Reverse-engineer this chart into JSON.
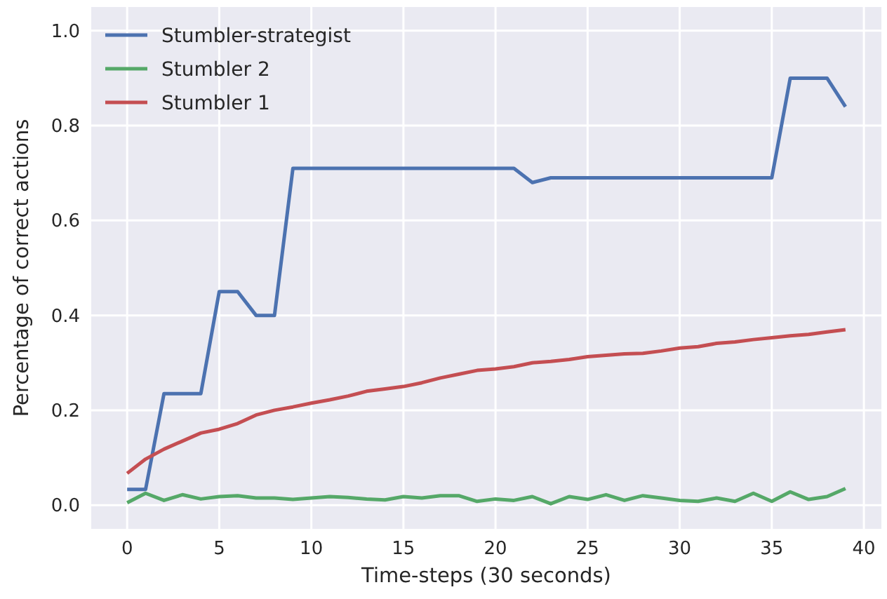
{
  "chart_data": {
    "type": "line",
    "xlabel": "Time-steps (30 seconds)",
    "ylabel": "Percentage of correct actions",
    "x": [
      0,
      1,
      2,
      3,
      4,
      5,
      6,
      7,
      8,
      9,
      10,
      11,
      12,
      13,
      14,
      15,
      16,
      17,
      18,
      19,
      20,
      21,
      22,
      23,
      24,
      25,
      26,
      27,
      28,
      29,
      30,
      31,
      32,
      33,
      34,
      35,
      36,
      37,
      38,
      39
    ],
    "xlim": [
      -1.95,
      40.95
    ],
    "xticks": [
      0,
      5,
      10,
      15,
      20,
      25,
      30,
      35,
      40
    ],
    "ylim": [
      -0.05,
      1.05
    ],
    "yticks": [
      {
        "value": 0,
        "label": "0.0"
      },
      {
        "value": 0.2,
        "label": "0.2"
      },
      {
        "value": 0.4,
        "label": "0.4"
      },
      {
        "value": 0.6,
        "label": "0.6"
      },
      {
        "value": 0.8,
        "label": "0.8"
      },
      {
        "value": 1,
        "label": "1.0"
      }
    ],
    "grid": true,
    "legend": "top left",
    "line_style": "solid",
    "marker": "none",
    "series": [
      {
        "name": "Stumbler-strategist",
        "color": "#4c72b0",
        "values": [
          0.033,
          0.033,
          0.235,
          0.235,
          0.235,
          0.45,
          0.45,
          0.4,
          0.4,
          0.71,
          0.71,
          0.71,
          0.71,
          0.71,
          0.71,
          0.71,
          0.71,
          0.71,
          0.71,
          0.71,
          0.71,
          0.71,
          0.68,
          0.69,
          0.69,
          0.69,
          0.69,
          0.69,
          0.69,
          0.69,
          0.69,
          0.69,
          0.69,
          0.69,
          0.69,
          0.69,
          0.9,
          0.9,
          0.9,
          0.84
        ]
      },
      {
        "name": "Stumbler 2",
        "color": "#55a868",
        "values": [
          0.005,
          0.025,
          0.01,
          0.022,
          0.013,
          0.018,
          0.02,
          0.015,
          0.015,
          0.012,
          0.015,
          0.018,
          0.016,
          0.013,
          0.011,
          0.018,
          0.015,
          0.02,
          0.02,
          0.008,
          0.013,
          0.01,
          0.018,
          0.003,
          0.018,
          0.012,
          0.022,
          0.01,
          0.02,
          0.015,
          0.01,
          0.008,
          0.015,
          0.008,
          0.025,
          0.008,
          0.028,
          0.012,
          0.018,
          0.035
        ]
      },
      {
        "name": "Stumbler 1",
        "color": "#c44e52",
        "values": [
          0.067,
          0.097,
          0.118,
          0.135,
          0.152,
          0.16,
          0.172,
          0.19,
          0.2,
          0.207,
          0.215,
          0.222,
          0.23,
          0.24,
          0.245,
          0.25,
          0.258,
          0.268,
          0.276,
          0.284,
          0.287,
          0.292,
          0.3,
          0.303,
          0.307,
          0.313,
          0.316,
          0.319,
          0.32,
          0.325,
          0.331,
          0.334,
          0.341,
          0.344,
          0.349,
          0.353,
          0.357,
          0.36,
          0.365,
          0.37
        ]
      }
    ]
  }
}
